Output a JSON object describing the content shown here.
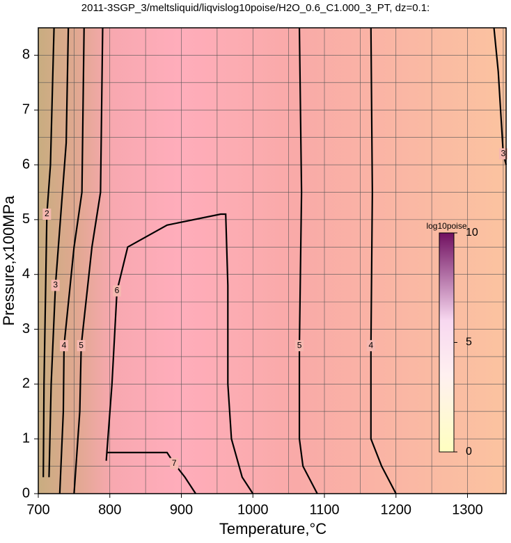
{
  "chart_data": {
    "type": "contour",
    "title": "2011-3SGP_3/meltsliquid/liqvislog10poise/H2O_0.6_C1.000_3_PT, dz=0.1:",
    "x_label": "Temperature,°C",
    "y_label": "Pressure,x100MPa",
    "xlim": [
      700,
      1354
    ],
    "ylim": [
      0,
      8.5
    ],
    "xticks": [
      700,
      800,
      900,
      1000,
      1100,
      1200,
      1300
    ],
    "yticks": [
      0,
      1,
      2,
      3,
      4,
      5,
      6,
      7,
      8
    ],
    "xgrid": [
      750,
      850,
      950,
      1050,
      1150,
      1250,
      1350
    ],
    "ygrid": [
      0.5,
      1.5,
      2.5,
      3.5,
      4.5,
      5.5,
      6.5,
      7.5
    ],
    "contours": [
      {
        "level": 2,
        "x": [
          707,
          708,
          712,
          717,
          720,
          722
        ],
        "y": [
          0.3,
          2,
          5.1,
          6,
          7.5,
          8.5
        ]
      },
      {
        "level": 3,
        "x": [
          715,
          718,
          724,
          739,
          742
        ],
        "y": [
          0.3,
          2,
          3.8,
          6.4,
          8.5
        ]
      },
      {
        "level": 4,
        "x": [
          730,
          735,
          736,
          750,
          761,
          764
        ],
        "y": [
          0,
          1.5,
          2.7,
          4.5,
          5.5,
          8.5
        ]
      },
      {
        "level": 5,
        "x": [
          750,
          758,
          760,
          775,
          787,
          790
        ],
        "y": [
          0,
          1.5,
          2.7,
          4.5,
          5.5,
          8.5
        ]
      },
      {
        "level": 6,
        "x": [
          795,
          803,
          810,
          825,
          880,
          955,
          962,
          965,
          965,
          970,
          985,
          1000
        ],
        "y": [
          0.6,
          2,
          3.7,
          4.5,
          4.9,
          5.1,
          5.1,
          3.8,
          2,
          1,
          0.3,
          0
        ]
      },
      {
        "level": 7,
        "x": [
          795,
          880,
          890,
          905,
          920
        ],
        "y": [
          0.75,
          0.75,
          0.55,
          0.3,
          0
        ]
      },
      {
        "level": 5,
        "x": [
          1065,
          1068,
          1065,
          1065,
          1070,
          1090
        ],
        "y": [
          8.5,
          5.5,
          2.7,
          1,
          0.5,
          0
        ]
      },
      {
        "level": 4,
        "x": [
          1165,
          1167,
          1165,
          1165,
          1180,
          1200
        ],
        "y": [
          8.5,
          5.5,
          2.7,
          1,
          0.5,
          0
        ]
      },
      {
        "level": 3,
        "x": [
          1337,
          1343,
          1350,
          1354
        ],
        "y": [
          8.5,
          7.7,
          6.2,
          6
        ]
      }
    ],
    "colorbar": {
      "label": "log10poise",
      "lim": [
        0,
        10
      ],
      "ticks": [
        0,
        5,
        10
      ]
    }
  }
}
